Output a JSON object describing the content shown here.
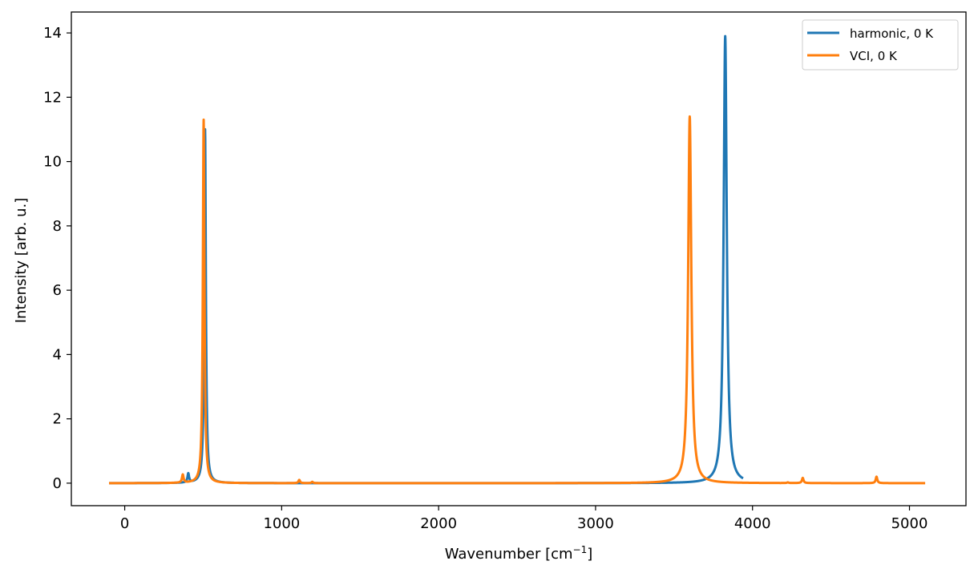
{
  "chart_data": {
    "type": "line",
    "xlabel": "Wavenumber [cm",
    "xlabel_sup": "−1",
    "xlabel_end": "]",
    "ylabel": "Intensity [arb. u.]",
    "xlim": [
      -340,
      5360
    ],
    "ylim": [
      -0.7,
      14.65
    ],
    "xticks": [
      0,
      1000,
      2000,
      3000,
      4000,
      5000
    ],
    "xtick_labels": [
      "0",
      "1000",
      "2000",
      "3000",
      "4000",
      "5000"
    ],
    "yticks": [
      0,
      2,
      4,
      6,
      8,
      10,
      12,
      14
    ],
    "ytick_labels": [
      "0",
      "2",
      "4",
      "6",
      "8",
      "10",
      "12",
      "14"
    ],
    "grid": false,
    "legend_position": "top-right",
    "series": [
      {
        "name": "harmonic, 0 K",
        "color": "#1f77b4",
        "x_range": [
          -100,
          3940
        ],
        "peaks": [
          {
            "x": 405,
            "height": 0.28,
            "width": 6
          },
          {
            "x": 512,
            "height": 11.0,
            "width": 6
          },
          {
            "x": 3826,
            "height": 13.9,
            "width": 12
          }
        ]
      },
      {
        "name": "VCI, 0 K",
        "color": "#ff7f0e",
        "x_range": [
          -100,
          5100
        ],
        "peaks": [
          {
            "x": 370,
            "height": 0.25,
            "width": 6
          },
          {
            "x": 503,
            "height": 11.3,
            "width": 6
          },
          {
            "x": 1112,
            "height": 0.1,
            "width": 6
          },
          {
            "x": 1195,
            "height": 0.04,
            "width": 6
          },
          {
            "x": 3600,
            "height": 11.4,
            "width": 12
          },
          {
            "x": 4225,
            "height": 0.02,
            "width": 6
          },
          {
            "x": 4320,
            "height": 0.16,
            "width": 6
          },
          {
            "x": 4790,
            "height": 0.2,
            "width": 6
          }
        ]
      }
    ]
  }
}
